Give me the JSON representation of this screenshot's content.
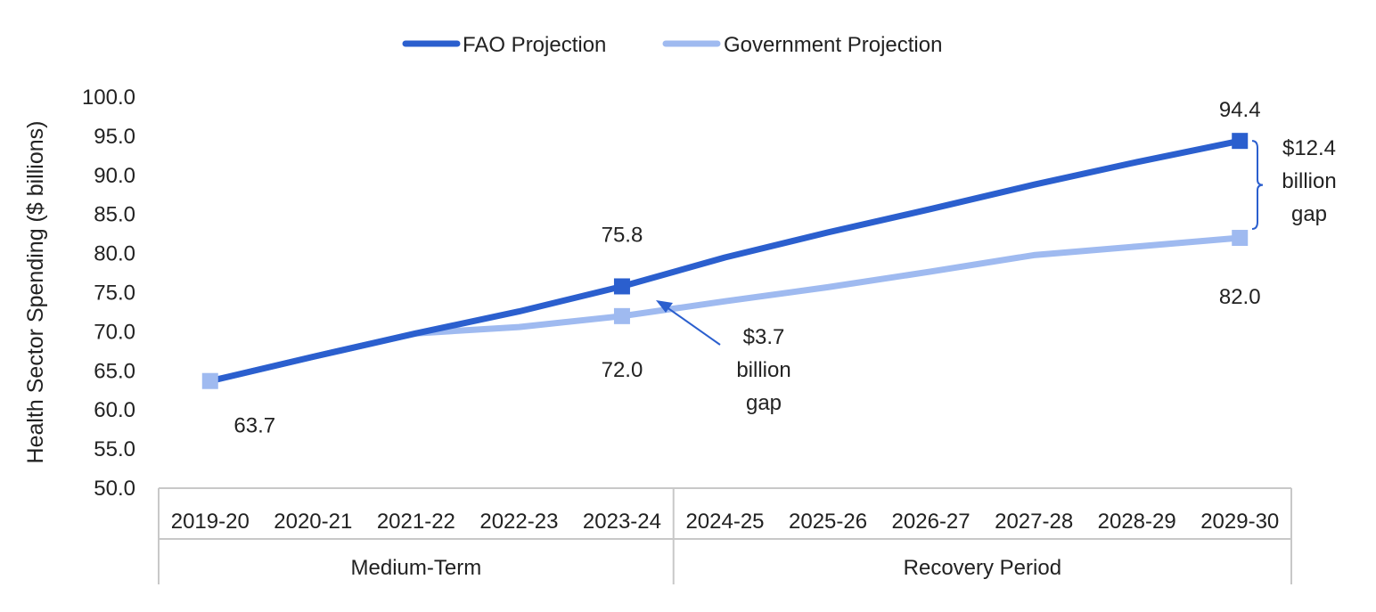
{
  "chart_data": {
    "type": "line",
    "ylabel": "Health Sector Spending ($ billions)",
    "ylim": [
      50,
      100
    ],
    "y_ticks": [
      "50.0",
      "55.0",
      "60.0",
      "65.0",
      "70.0",
      "75.0",
      "80.0",
      "85.0",
      "90.0",
      "95.0",
      "100.0"
    ],
    "categories": [
      "2019-20",
      "2020-21",
      "2021-22",
      "2022-23",
      "2023-24",
      "2024-25",
      "2025-26",
      "2026-27",
      "2027-28",
      "2028-29",
      "2029-30"
    ],
    "category_groups": [
      {
        "label": "Medium-Term",
        "span": 5
      },
      {
        "label": "Recovery Period",
        "span": 6
      }
    ],
    "series": [
      {
        "name": "FAO Projection",
        "color": "#2b5fce",
        "values": [
          63.7,
          66.8,
          69.8,
          72.6,
          75.8,
          79.5,
          82.7,
          85.7,
          88.8,
          91.7,
          94.4
        ]
      },
      {
        "name": "Government Projection",
        "color": "#9fbaf0",
        "values": [
          63.7,
          66.8,
          69.8,
          70.6,
          72.0,
          73.9,
          75.7,
          77.7,
          79.8,
          80.9,
          82.0
        ]
      }
    ],
    "data_labels": [
      {
        "text": "63.7",
        "series": 1,
        "index": 0
      },
      {
        "text": "75.8",
        "series": 0,
        "index": 4
      },
      {
        "text": "72.0",
        "series": 1,
        "index": 4
      },
      {
        "text": "94.4",
        "series": 0,
        "index": 10
      },
      {
        "text": "82.0",
        "series": 1,
        "index": 10
      }
    ],
    "annotations": [
      {
        "lines": [
          "$3.7",
          "billion",
          "gap"
        ],
        "target_index": 4
      },
      {
        "lines": [
          "$12.4",
          "billion",
          "gap"
        ],
        "target_index": 10
      }
    ],
    "legend": {
      "position": "top-center"
    },
    "grid": false
  }
}
